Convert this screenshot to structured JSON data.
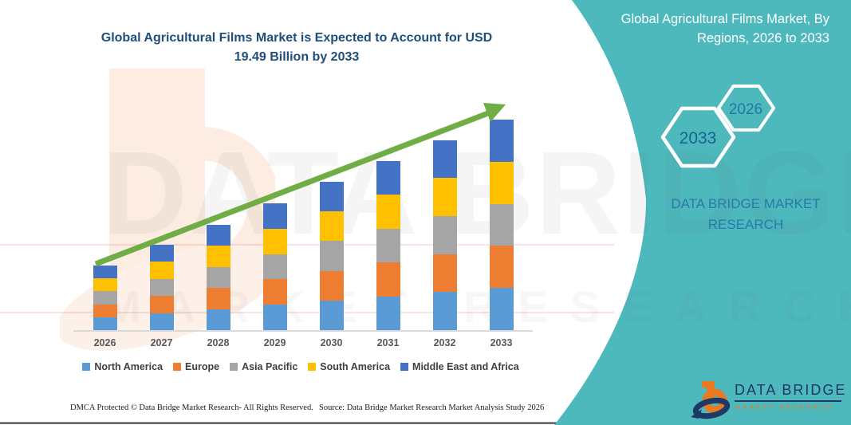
{
  "main": {
    "title_line1": "Global Agricultural Films Market is Expected to Account for USD",
    "title_line2": "19.49 Billion by 2033",
    "footer_left": "DMCA Protected © Data Bridge Market Research-  All Rights Reserved.",
    "footer_right": "Source: Data Bridge Market Research  Market Analysis Study 2026"
  },
  "watermark": {
    "line1": "DATA BRIDGE",
    "line2": "MARKET RESEARCH"
  },
  "side_panel": {
    "accent_color": "#4db9bd",
    "title_line1": "Global Agricultural Films Market, By",
    "title_line2": "Regions, 2026 to 2033",
    "hexagons": [
      {
        "label": "2033"
      },
      {
        "label": "2026"
      }
    ],
    "brand_text": "DATA BRIDGE MARKET RESEARCH",
    "logo": {
      "name": "DATA BRIDGE",
      "subtitle": "MARKET RESEARCH"
    }
  },
  "chart_data": {
    "type": "bar",
    "stacked": true,
    "title": "Global Agricultural Films Market is Expected to Account for USD 19.49 Billion by 2033",
    "unit": "USD Billion (values estimated from bar heights; 2033 total stated as 19.49)",
    "categories": [
      "2026",
      "2027",
      "2028",
      "2029",
      "2030",
      "2031",
      "2032",
      "2033"
    ],
    "series": [
      {
        "name": "North America",
        "color": "#5B9BD5",
        "values": [
          1.2,
          1.58,
          1.96,
          2.35,
          2.75,
          3.13,
          3.52,
          3.9
        ]
      },
      {
        "name": "Europe",
        "color": "#ED7D31",
        "values": [
          1.2,
          1.58,
          1.96,
          2.35,
          2.75,
          3.13,
          3.52,
          3.9
        ]
      },
      {
        "name": "Asia Pacific",
        "color": "#A5A5A5",
        "values": [
          1.2,
          1.58,
          1.96,
          2.35,
          2.75,
          3.13,
          3.52,
          3.9
        ]
      },
      {
        "name": "South America",
        "color": "#FFC000",
        "values": [
          1.2,
          1.58,
          1.96,
          2.35,
          2.75,
          3.13,
          3.52,
          3.9
        ]
      },
      {
        "name": "Middle East and Africa",
        "color": "#4472C4",
        "values": [
          1.2,
          1.58,
          1.96,
          2.35,
          2.75,
          3.13,
          3.52,
          3.9
        ]
      }
    ],
    "totals_estimated": [
      5.98,
      7.9,
      9.82,
      11.74,
      13.73,
      15.65,
      17.58,
      19.49
    ],
    "trend_arrow": {
      "show": true,
      "color": "#70AD47"
    },
    "legend_position": "bottom",
    "axis": {
      "y_axis_visible": false,
      "x_labels": [
        "2026",
        "2027",
        "2028",
        "2029",
        "2030",
        "2031",
        "2032",
        "2033"
      ]
    }
  }
}
